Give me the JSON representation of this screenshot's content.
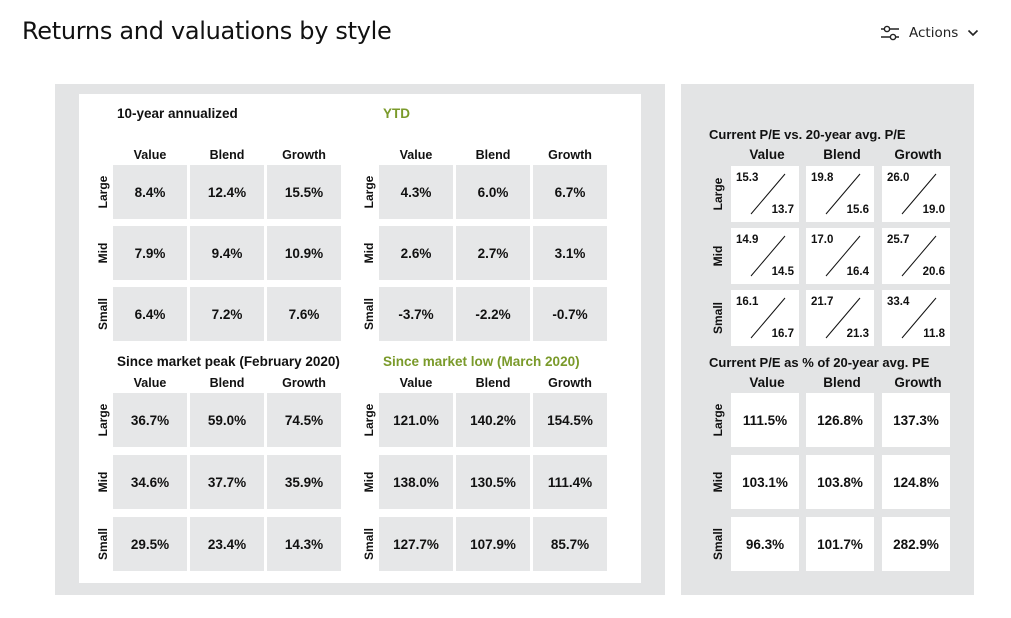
{
  "page": {
    "title": "Returns and valuations by style",
    "actions_label": "Actions"
  },
  "columns": [
    "Value",
    "Blend",
    "Growth"
  ],
  "rows": [
    "Large",
    "Mid",
    "Small"
  ],
  "ten_year": {
    "title": "10-year annualized",
    "cells": [
      [
        "8.4%",
        "12.4%",
        "15.5%"
      ],
      [
        "7.9%",
        "9.4%",
        "10.9%"
      ],
      [
        "6.4%",
        "7.2%",
        "7.6%"
      ]
    ]
  },
  "ytd": {
    "title": "YTD",
    "cells": [
      [
        "4.3%",
        "6.0%",
        "6.7%"
      ],
      [
        "2.6%",
        "2.7%",
        "3.1%"
      ],
      [
        "-3.7%",
        "-2.2%",
        "-0.7%"
      ]
    ]
  },
  "since_peak": {
    "title": "Since market peak (February 2020)",
    "cells": [
      [
        "36.7%",
        "59.0%",
        "74.5%"
      ],
      [
        "34.6%",
        "37.7%",
        "35.9%"
      ],
      [
        "29.5%",
        "23.4%",
        "14.3%"
      ]
    ]
  },
  "since_low": {
    "title": "Since market low (March 2020)",
    "cells": [
      [
        "121.0%",
        "140.2%",
        "154.5%"
      ],
      [
        "138.0%",
        "130.5%",
        "111.4%"
      ],
      [
        "127.7%",
        "107.9%",
        "85.7%"
      ]
    ]
  },
  "pe_vs_avg": {
    "title": "Current P/E vs. 20-year avg. P/E",
    "cells": [
      [
        {
          "current": "15.3",
          "avg": "13.7"
        },
        {
          "current": "19.8",
          "avg": "15.6"
        },
        {
          "current": "26.0",
          "avg": "19.0"
        }
      ],
      [
        {
          "current": "14.9",
          "avg": "14.5"
        },
        {
          "current": "17.0",
          "avg": "16.4"
        },
        {
          "current": "25.7",
          "avg": "20.6"
        }
      ],
      [
        {
          "current": "16.1",
          "avg": "16.7"
        },
        {
          "current": "21.7",
          "avg": "21.3"
        },
        {
          "current": "33.4",
          "avg": "11.8"
        }
      ]
    ]
  },
  "pe_pct": {
    "title": "Current P/E as % of 20-year avg. PE",
    "cells": [
      [
        "111.5%",
        "126.8%",
        "137.3%"
      ],
      [
        "103.1%",
        "103.8%",
        "124.8%"
      ],
      [
        "96.3%",
        "101.7%",
        "282.9%"
      ]
    ]
  },
  "colors": {
    "accent_green": "#7a9a2a",
    "panel_bg": "#e3e4e5",
    "cell_bg": "#e6e7e8"
  },
  "icons": {
    "actions": "sliders-icon",
    "caret": "chevron-down-icon"
  }
}
